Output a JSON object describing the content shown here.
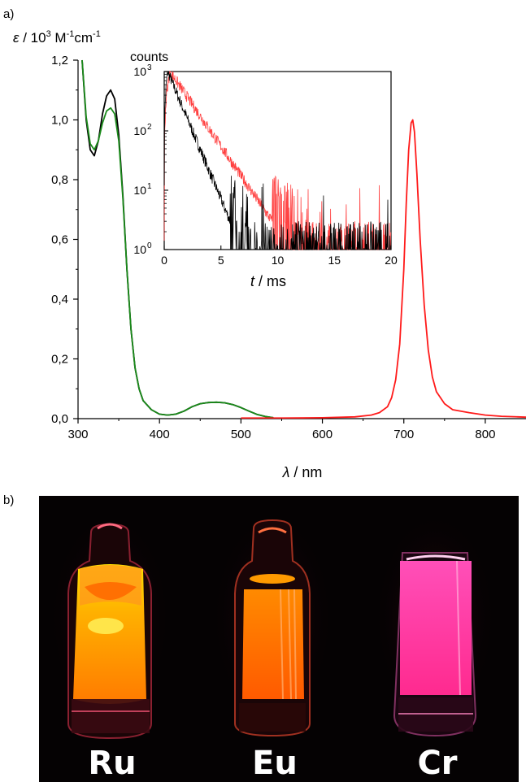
{
  "panel_a_label": "a)",
  "panel_b_label": "b)",
  "colors": {
    "black_curve": "#000000",
    "green_curve": "#1a8a1a",
    "red_curve": "#ff1a1a",
    "inset_red": "#ff4040",
    "photo_background": "#050203"
  },
  "chart_data": [
    {
      "type": "line",
      "ylabel_symbol": "ε",
      "ylabel_rest": " / 10",
      "ylabel_exp1": "3",
      "ylabel_mid": " M",
      "ylabel_exp2": "-1",
      "ylabel_mid2": "cm",
      "ylabel_exp3": "-1",
      "xlabel_symbol": "λ",
      "xlabel_rest": " / nm",
      "xlim": [
        300,
        850
      ],
      "ylim": [
        0,
        1.2
      ],
      "xticks": [
        300,
        400,
        500,
        600,
        700,
        800
      ],
      "xtick_labels": [
        "300",
        "400",
        "500",
        "600",
        "700",
        "800"
      ],
      "yticks": [
        0,
        0.2,
        0.4,
        0.6,
        0.8,
        1.0,
        1.2
      ],
      "ytick_labels": [
        "0,0",
        "0,2",
        "0,4",
        "0,6",
        "0,8",
        "1,0",
        "1,2"
      ],
      "series": [
        {
          "color_key": "black_curve",
          "x": [
            305,
            310,
            315,
            320,
            325,
            330,
            335,
            340,
            345,
            350,
            355,
            360,
            365,
            370,
            375,
            380,
            390,
            400,
            410,
            420,
            430,
            440,
            450,
            460,
            470,
            480,
            490,
            500,
            510,
            520,
            530,
            540
          ],
          "y": [
            1.2,
            1.0,
            0.9,
            0.88,
            0.93,
            1.02,
            1.08,
            1.1,
            1.07,
            0.95,
            0.75,
            0.5,
            0.3,
            0.17,
            0.1,
            0.06,
            0.03,
            0.015,
            0.012,
            0.015,
            0.025,
            0.04,
            0.05,
            0.054,
            0.055,
            0.053,
            0.047,
            0.037,
            0.025,
            0.014,
            0.007,
            0.003
          ]
        },
        {
          "color_key": "green_curve",
          "x": [
            305,
            310,
            315,
            320,
            325,
            330,
            335,
            340,
            345,
            350,
            355,
            360,
            365,
            370,
            375,
            380,
            390,
            400,
            410,
            420,
            430,
            440,
            450,
            460,
            470,
            480,
            490,
            500,
            510,
            520,
            530,
            540
          ],
          "y": [
            1.2,
            1.01,
            0.92,
            0.9,
            0.93,
            0.99,
            1.03,
            1.04,
            1.02,
            0.93,
            0.74,
            0.5,
            0.3,
            0.17,
            0.1,
            0.06,
            0.03,
            0.015,
            0.012,
            0.015,
            0.025,
            0.04,
            0.05,
            0.054,
            0.055,
            0.053,
            0.047,
            0.037,
            0.025,
            0.014,
            0.007,
            0.003
          ]
        },
        {
          "color_key": "red_curve",
          "x": [
            500,
            550,
            600,
            640,
            660,
            670,
            680,
            685,
            690,
            695,
            700,
            703,
            706,
            709,
            711,
            713,
            716,
            720,
            725,
            730,
            735,
            740,
            750,
            760,
            780,
            800,
            820,
            840,
            850
          ],
          "y": [
            0.002,
            0.002,
            0.003,
            0.006,
            0.012,
            0.02,
            0.04,
            0.07,
            0.13,
            0.25,
            0.5,
            0.72,
            0.9,
            0.99,
            1.0,
            0.96,
            0.82,
            0.6,
            0.38,
            0.23,
            0.14,
            0.09,
            0.05,
            0.03,
            0.02,
            0.012,
            0.008,
            0.006,
            0.005
          ]
        }
      ]
    },
    {
      "type": "line",
      "title": "counts",
      "xlabel_symbol": "t",
      "xlabel_rest": " / ms",
      "xlim": [
        0,
        20
      ],
      "ylim": [
        1,
        1000
      ],
      "yscale": "log",
      "xticks": [
        0,
        5,
        10,
        15,
        20
      ],
      "xtick_labels": [
        "0",
        "5",
        "10",
        "15",
        "20"
      ],
      "yticks": [
        1,
        10,
        100,
        1000
      ],
      "ytick_base": "10",
      "ytick_exps": [
        "0",
        "1",
        "2",
        "3"
      ],
      "series": [
        {
          "color_key": "black_curve",
          "peak": 1000,
          "start": 0.3,
          "tau_ms": 0.95,
          "end_ms": 20
        },
        {
          "color_key": "inset_red",
          "peak": 1000,
          "start": 0.5,
          "tau_ms": 1.55,
          "end_ms": 20
        }
      ]
    }
  ],
  "photo": {
    "labels": [
      "Ru",
      "Eu",
      "Cr"
    ]
  }
}
